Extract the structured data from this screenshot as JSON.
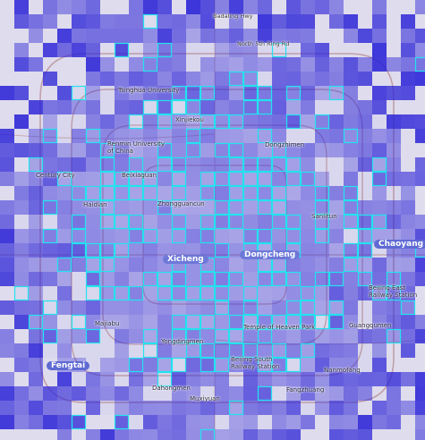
{
  "map": {
    "labels": [
      {
        "id": "badaling",
        "text": "Badaling Hwy"
      },
      {
        "id": "north5",
        "text": "North 5th Ring Rd"
      },
      {
        "id": "tsinghua",
        "text": "Tsinghua University"
      },
      {
        "id": "renmin",
        "text": "Renmin University of China"
      },
      {
        "id": "beixiaguan",
        "text": "Beixiaguan"
      },
      {
        "id": "century",
        "text": "Century City"
      },
      {
        "id": "haidian",
        "text": "Haidian"
      },
      {
        "id": "xicheng",
        "text": "Xicheng"
      },
      {
        "id": "dongcheng",
        "text": "Dongcheng"
      },
      {
        "id": "chaoyang",
        "text": "Chaoyang"
      },
      {
        "id": "sanlitun",
        "text": "Sanlitun"
      },
      {
        "id": "zhongguancun",
        "text": "Zhongguancun"
      },
      {
        "id": "fengtai",
        "text": "Fengtai"
      },
      {
        "id": "yongdingmen",
        "text": "Yongdingmen"
      },
      {
        "id": "temple_heaven",
        "text": "Temple of Heaven Park"
      },
      {
        "id": "beijing_south",
        "text": "Beijing South Railway Station"
      },
      {
        "id": "beijing_east",
        "text": "Beijing East Railway Station"
      },
      {
        "id": "nanmofang",
        "text": "Nanmofang"
      },
      {
        "id": "majiabu",
        "text": "Majiabu"
      },
      {
        "id": "muxiyuan",
        "text": "Muxiyuan"
      },
      {
        "id": "guangqumen",
        "text": "Guangqumen"
      },
      {
        "id": "fangzhuang",
        "text": "Fangzhuang"
      },
      {
        "id": "dahongmen",
        "text": "Dahongmen"
      },
      {
        "id": "xinjiekou",
        "text": "Xinjiekou"
      },
      {
        "id": "dongzhimen",
        "text": "Dongzhimen"
      }
    ]
  },
  "colors": {
    "base_map": "#e9e6ef",
    "heat_dark": "#2a22d6",
    "heat_mid": "#6b63e8",
    "heat_light": "#b9b3f3",
    "cell_outline": "#22e3ee",
    "district_pill": "#6d78d8"
  }
}
